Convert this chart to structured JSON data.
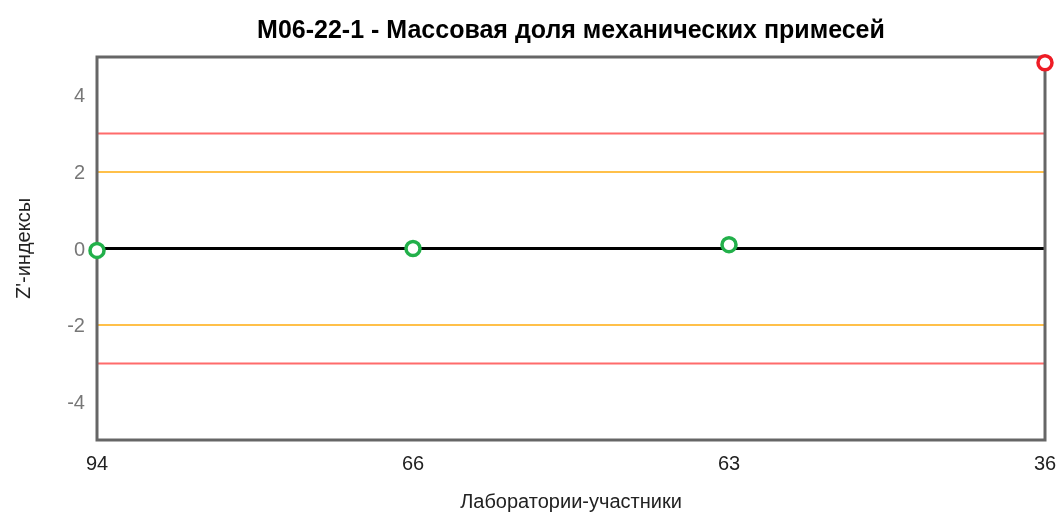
{
  "chart_data": {
    "type": "scatter",
    "title": "М06-22-1 - Массовая доля механических примесей",
    "xlabel": "Лаборатории-участники",
    "ylabel": "Z'-индексы",
    "categories": [
      "94",
      "66",
      "63",
      "36"
    ],
    "series": [
      {
        "colors": [
          "#22b04a",
          "#22b04a",
          "#22b04a",
          "#ee1c25"
        ],
        "values": [
          -0.05,
          0,
          0.1,
          4.85
        ]
      }
    ],
    "ylim": [
      -5,
      5
    ],
    "yticks": [
      -4,
      -2,
      0,
      2,
      4
    ],
    "grid": false,
    "marker": "circle",
    "ref_lines": [
      {
        "axis": "y",
        "value": 0,
        "color": "#000000"
      },
      {
        "axis": "y",
        "value": 2,
        "color": "#ffc04a"
      },
      {
        "axis": "y",
        "value": -2,
        "color": "#ffc04a"
      },
      {
        "axis": "y",
        "value": 3,
        "color": "#ff6b6b"
      },
      {
        "axis": "y",
        "value": -3,
        "color": "#ff6b6b"
      }
    ]
  }
}
